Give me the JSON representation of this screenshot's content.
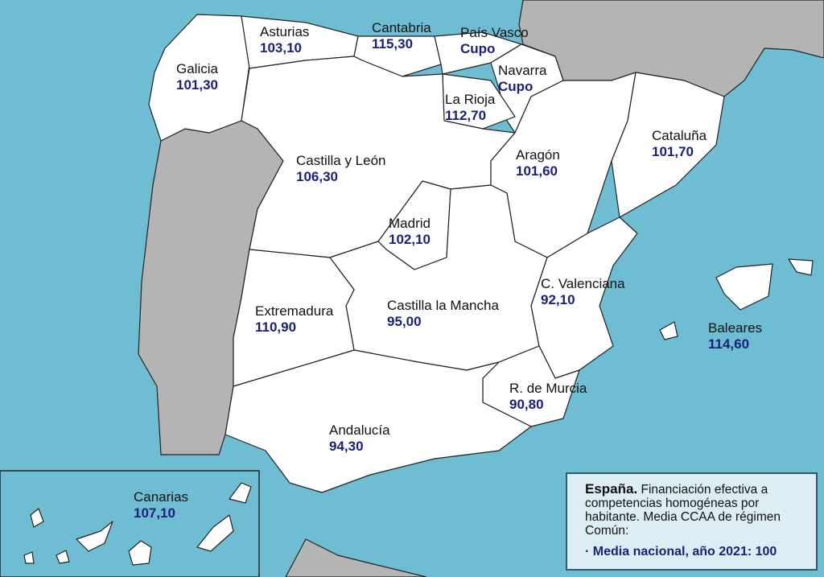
{
  "colors": {
    "sea": "#6fbdd3",
    "region": "#ffffff",
    "foreign": "#b4b4b4",
    "value": "#1a1f7a",
    "legend_bg": "#dcedf4"
  },
  "regions": [
    {
      "name": "Galicia",
      "value": "101,30"
    },
    {
      "name": "Asturias",
      "value": "103,10"
    },
    {
      "name": "Cantabria",
      "value": "115,30"
    },
    {
      "name": "País Vasco",
      "value": "Cupo"
    },
    {
      "name": "Navarra",
      "value": "Cupo"
    },
    {
      "name": "La Rioja",
      "value": "112,70"
    },
    {
      "name": "Castilla y León",
      "value": "106,30"
    },
    {
      "name": "Aragón",
      "value": "101,60"
    },
    {
      "name": "Cataluña",
      "value": "101,70"
    },
    {
      "name": "Madrid",
      "value": "102,10"
    },
    {
      "name": "Extremadura",
      "value": "110,90"
    },
    {
      "name": "Castilla la Mancha",
      "value": "95,00"
    },
    {
      "name": "C. Valenciana",
      "value": "92,10"
    },
    {
      "name": "Baleares",
      "value": "114,60"
    },
    {
      "name": "R. de Murcia",
      "value": "90,80"
    },
    {
      "name": "Andalucía",
      "value": "94,30"
    },
    {
      "name": "Canarias",
      "value": "107,10"
    }
  ],
  "legend": {
    "title": "España.",
    "text": "Financiación efectiva a competencias homogéneas por habitante. Media CCAA de régimen Común:",
    "bullet": "·",
    "mean": "Media nacional, año 2021: 100"
  }
}
